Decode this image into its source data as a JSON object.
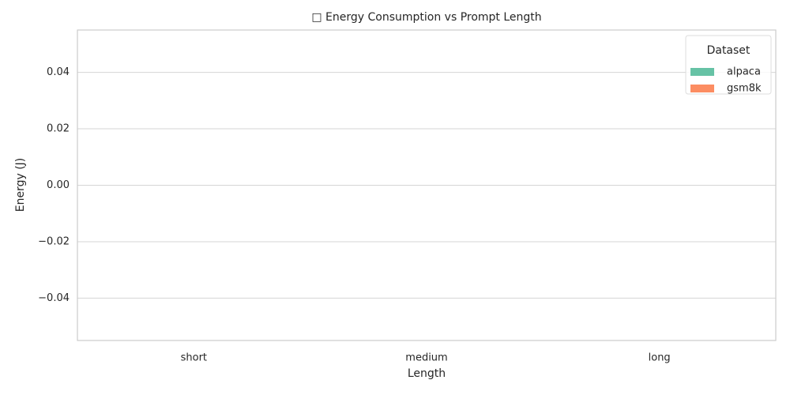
{
  "chart_data": {
    "type": "bar",
    "title": "□ Energy Consumption vs Prompt Length",
    "x_label": "Length",
    "y_label": "Energy (J)",
    "categories": [
      "short",
      "medium",
      "long"
    ],
    "series": [
      {
        "name": "alpaca",
        "color": "#66c2a5",
        "values": [
          0,
          0,
          0
        ]
      },
      {
        "name": "gsm8k",
        "color": "#fc8d62",
        "values": [
          0,
          0,
          0
        ]
      }
    ],
    "legend_title": "Dataset",
    "legend": "upper right",
    "ylim": [
      -0.055,
      0.055
    ],
    "yticks": [
      {
        "value": -0.04,
        "label": "−0.04"
      },
      {
        "value": -0.02,
        "label": "−0.02"
      },
      {
        "value": 0,
        "label": "0.00"
      },
      0.02,
      0.04
    ],
    "grid": true
  }
}
